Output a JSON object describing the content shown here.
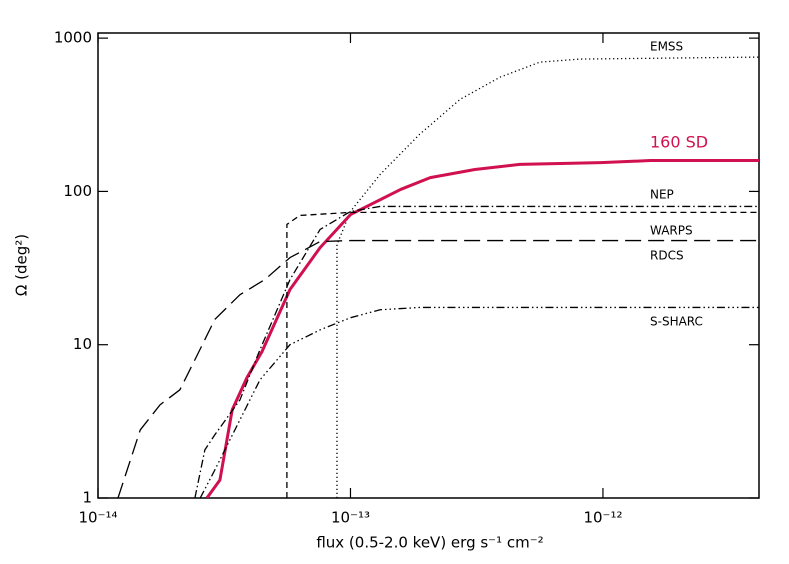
{
  "chart_data": {
    "type": "line",
    "x_label": "flux (0.5-2.0 keV) erg s⁻¹ cm⁻²",
    "y_label": "Ω (deg²)",
    "x_log": true,
    "y_log": true,
    "xlim": [
      1e-14,
      4.15e-12
    ],
    "ylim": [
      1,
      1080
    ],
    "xticks": [
      {
        "value": 1e-14,
        "label": "10⁻¹⁴"
      },
      {
        "value": 1e-13,
        "label": "10⁻¹³"
      },
      {
        "value": 1e-12,
        "label": "10⁻¹²"
      }
    ],
    "yticks": [
      1,
      10,
      100,
      1000
    ],
    "series": [
      {
        "name": "EMSS",
        "color": "#000000",
        "dash": "dotted",
        "x": [
          8.84e-14,
          8.84e-14,
          1e-13,
          1.31e-13,
          1.88e-13,
          2.72e-13,
          3.91e-13,
          5.62e-13,
          8.1e-13,
          4.15e-12
        ],
        "values": [
          1,
          45,
          74,
          129,
          236,
          399,
          556,
          697,
          730,
          752
        ]
      },
      {
        "name": "160 SD",
        "color": "#d0104f",
        "dash": "solid",
        "x": [
          2.7e-14,
          3.04e-14,
          3.4e-14,
          3.89e-14,
          4.46e-14,
          5.76e-14,
          7.58e-14,
          1e-13,
          1.58e-13,
          2.07e-13,
          3.11e-13,
          4.68e-13,
          9.8e-13,
          1.54e-12,
          4.15e-12
        ],
        "values": [
          1,
          1.31,
          3.76,
          6.1,
          9.0,
          22.9,
          43,
          70.6,
          103,
          123,
          139,
          150,
          154,
          159,
          159
        ]
      },
      {
        "name": "NEP",
        "color": "#000000",
        "dash": "dash-dot",
        "x": [
          2.42e-14,
          2.65e-14,
          2.9e-14,
          3.65e-14,
          4.38e-14,
          5.76e-14,
          7.58e-14,
          1e-13,
          1.31e-13,
          4.15e-12
        ],
        "values": [
          1,
          2.06,
          2.58,
          4.37,
          9.27,
          26.6,
          56.5,
          74,
          79.8,
          79.8
        ]
      },
      {
        "name": "WARPS",
        "color": "#000000",
        "dash": "dashed",
        "x": [
          5.6e-14,
          5.6e-14,
          6.3e-14,
          1e-13,
          4.15e-12
        ],
        "values": [
          1,
          60.9,
          69.7,
          73,
          73
        ]
      },
      {
        "name": "RDCS",
        "color": "#000000",
        "dash": "long-dashed",
        "x": [
          1.2e-14,
          1.47e-14,
          1.76e-14,
          2.11e-14,
          2.42e-14,
          2.9e-14,
          3.65e-14,
          4.58e-14,
          5.76e-14,
          7.58e-14,
          1e-13,
          4.15e-12
        ],
        "values": [
          1,
          2.78,
          4.05,
          5.08,
          7.98,
          14.6,
          21.2,
          26.6,
          37.0,
          47.1,
          47.8,
          47.8
        ]
      },
      {
        "name": "S-SHARC",
        "color": "#000000",
        "dash": "dash-dot-dot-dot",
        "x": [
          2.54e-14,
          2.9e-14,
          3.65e-14,
          4.38e-14,
          5.76e-14,
          7.58e-14,
          1e-13,
          1.31e-13,
          1.88e-13,
          4.15e-12
        ],
        "values": [
          1,
          1.52,
          3.24,
          5.9,
          10,
          12.5,
          15,
          16.9,
          17.5,
          17.5
        ]
      }
    ]
  }
}
